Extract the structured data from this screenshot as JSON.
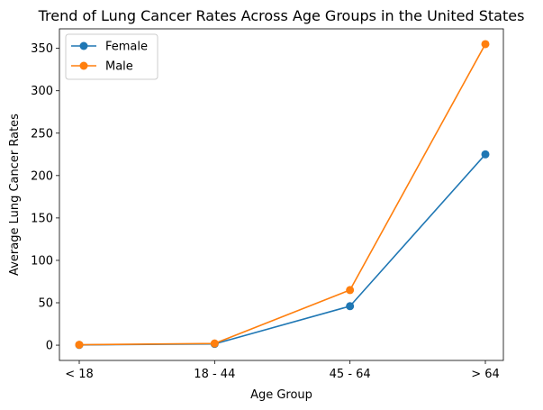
{
  "chart_data": {
    "type": "line",
    "title": "Trend of Lung Cancer Rates Across Age Groups in the United States",
    "xlabel": "Age Group",
    "ylabel": "Average Lung Cancer Rates",
    "categories": [
      "< 18",
      "18 - 44",
      "45 - 64",
      "> 64"
    ],
    "ylim": [
      -18,
      373
    ],
    "yticks": [
      0,
      50,
      100,
      150,
      200,
      250,
      300,
      350
    ],
    "grid": false,
    "legend_position": "top-left",
    "series": [
      {
        "name": "Female",
        "color": "#1f77b4",
        "marker": "circle",
        "values": [
          0.3,
          1.5,
          46,
          225
        ]
      },
      {
        "name": "Male",
        "color": "#ff7f0e",
        "marker": "circle",
        "values": [
          0.5,
          2,
          65,
          355
        ]
      }
    ]
  }
}
